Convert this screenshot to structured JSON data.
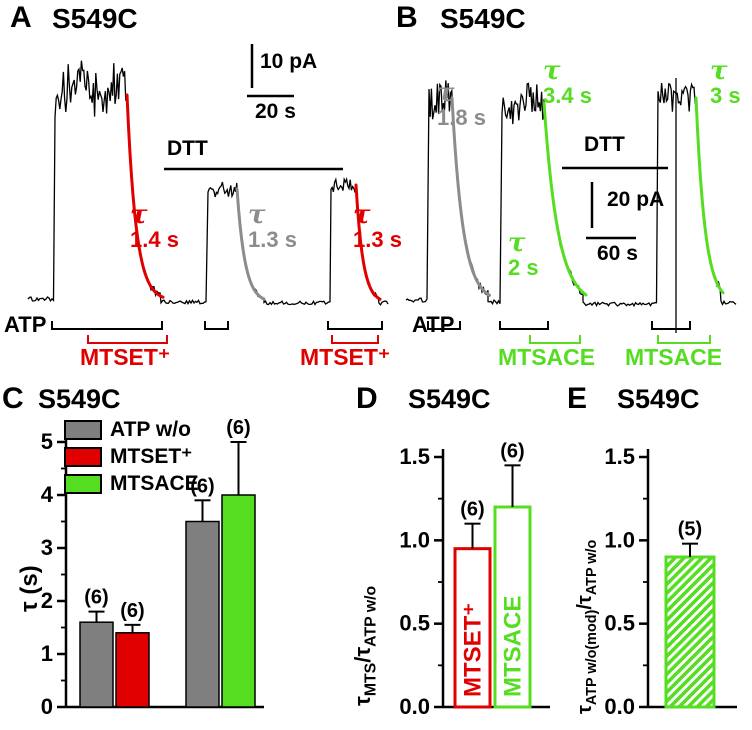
{
  "colors": {
    "accent_red": "#e00000",
    "fit_gray": "#8c8c8c",
    "accent_green": "#55dd22",
    "bar_gray": "#7f7f7f",
    "trace_black": "#000000"
  },
  "figure": {
    "panelA": {
      "label": "A",
      "title": "S549C",
      "scale_current": "10 pA",
      "scale_time": "20 s",
      "dtt": "DTT",
      "atp": "ATP",
      "taus": [
        {
          "sym": "τ",
          "val": "1.4 s",
          "color": "#e00000"
        },
        {
          "sym": "τ",
          "val": "1.3 s",
          "color": "#8c8c8c"
        },
        {
          "sym": "τ",
          "val": "1.3 s",
          "color": "#e00000"
        }
      ],
      "reagent_labels": [
        "MTSET⁺",
        "MTSET⁺"
      ]
    },
    "panelB": {
      "label": "B",
      "title": "S549C",
      "scale_current": "20 pA",
      "scale_time": "60 s",
      "dtt": "DTT",
      "atp": "ATP",
      "taus": [
        {
          "sym": "τ",
          "val": "1.8 s",
          "color": "#8c8c8c"
        },
        {
          "sym": "τ",
          "val": "3.4 s",
          "color": "#55dd22"
        },
        {
          "sym": "τ",
          "val": "2 s",
          "color": "#55dd22"
        },
        {
          "sym": "τ",
          "val": "3 s",
          "color": "#55dd22"
        }
      ],
      "reagent_labels": [
        "MTSACE",
        "MTSACE"
      ]
    }
  },
  "chart_data": [
    {
      "panel_label": "C",
      "title": "S549C",
      "type": "bar",
      "ylabel_parts": [
        {
          "t": "τ (s)"
        }
      ],
      "ylim": [
        0,
        5
      ],
      "yticks": [
        "0",
        "1",
        "2",
        "3",
        "4",
        "5"
      ],
      "legend": [
        {
          "label": "ATP w/o",
          "color": "#7f7f7f"
        },
        {
          "label": "MTSET⁺",
          "color": "#e00000"
        },
        {
          "label": "MTSACE",
          "color": "#55dd22"
        }
      ],
      "bars": [
        {
          "series": "ATP w/o",
          "value": 1.6,
          "err": 0.2,
          "n": "(6)",
          "fill": "#7f7f7f",
          "stroke": "#000000"
        },
        {
          "series": "MTSET⁺",
          "value": 1.4,
          "err": 0.15,
          "n": "(6)",
          "fill": "#e00000",
          "stroke": "#000000"
        },
        {
          "series": "ATP w/o",
          "value": 3.5,
          "err": 0.4,
          "n": "(6)",
          "fill": "#7f7f7f",
          "stroke": "#000000"
        },
        {
          "series": "MTSACE",
          "value": 4.0,
          "err": 1.0,
          "n": "(6)",
          "fill": "#55dd22",
          "stroke": "#000000"
        }
      ]
    },
    {
      "panel_label": "D",
      "title": "S549C",
      "type": "bar",
      "ylabel_parts": [
        {
          "t": "τ"
        },
        {
          "t": "MTS",
          "sub": true
        },
        {
          "t": "/τ"
        },
        {
          "t": "ATP w/o",
          "sub": true
        }
      ],
      "ylim": [
        0,
        1.5
      ],
      "yticks": [
        "0.0",
        "0.5",
        "1.0",
        "1.5"
      ],
      "bars": [
        {
          "series": "MTSET⁺",
          "value": 0.95,
          "err": 0.15,
          "n": "(6)",
          "fill": "#ffffff",
          "stroke": "#e00000",
          "inner_label": "MTSET⁺",
          "label_color": "#e00000"
        },
        {
          "series": "MTSACE",
          "value": 1.2,
          "err": 0.25,
          "n": "(6)",
          "fill": "#ffffff",
          "stroke": "#55dd22",
          "inner_label": "MTSACE",
          "label_color": "#55dd22"
        }
      ]
    },
    {
      "panel_label": "E",
      "title": "S549C",
      "type": "bar",
      "ylabel_parts": [
        {
          "t": "τ"
        },
        {
          "t": "ATP w/o(mod)",
          "sub": true
        },
        {
          "t": "/τ"
        },
        {
          "t": "ATP w/o",
          "sub": true
        }
      ],
      "ylim": [
        0,
        1.5
      ],
      "yticks": [
        "0.0",
        "0.5",
        "1.0",
        "1.5"
      ],
      "bars": [
        {
          "series": "ATP w/o(mod)",
          "value": 0.9,
          "err": 0.08,
          "n": "(5)",
          "fill": "hatch",
          "stroke": "#55dd22"
        }
      ]
    }
  ]
}
